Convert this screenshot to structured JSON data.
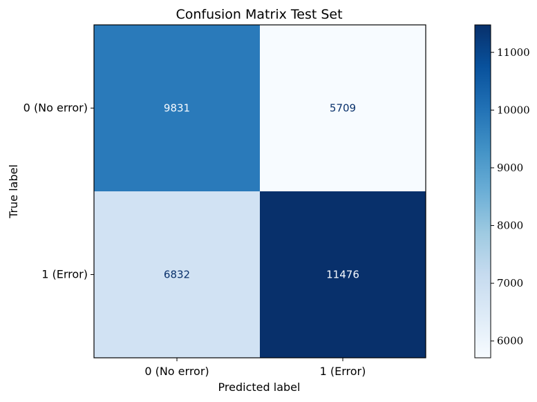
{
  "chart_data": {
    "type": "heatmap",
    "title": "Confusion Matrix Test Set",
    "xlabel": "Predicted label",
    "ylabel": "True label",
    "x_categories": [
      "0 (No error)",
      "1 (Error)"
    ],
    "y_categories": [
      "0 (No error)",
      "1 (Error)"
    ],
    "values": [
      [
        9831,
        5709
      ],
      [
        6832,
        11476
      ]
    ],
    "colormap": "Blues",
    "color_range": [
      5709,
      11476
    ],
    "colorbar": {
      "ticks": [
        6000,
        7000,
        8000,
        9000,
        10000,
        11000
      ],
      "tick_labels": [
        "6000",
        "7000",
        "8000",
        "9000",
        "10000",
        "11000"
      ]
    },
    "colors": {
      "low": "#f7fbff",
      "high": "#08306b",
      "text_light": "#f7fbff",
      "text_dark": "#08306b"
    }
  }
}
